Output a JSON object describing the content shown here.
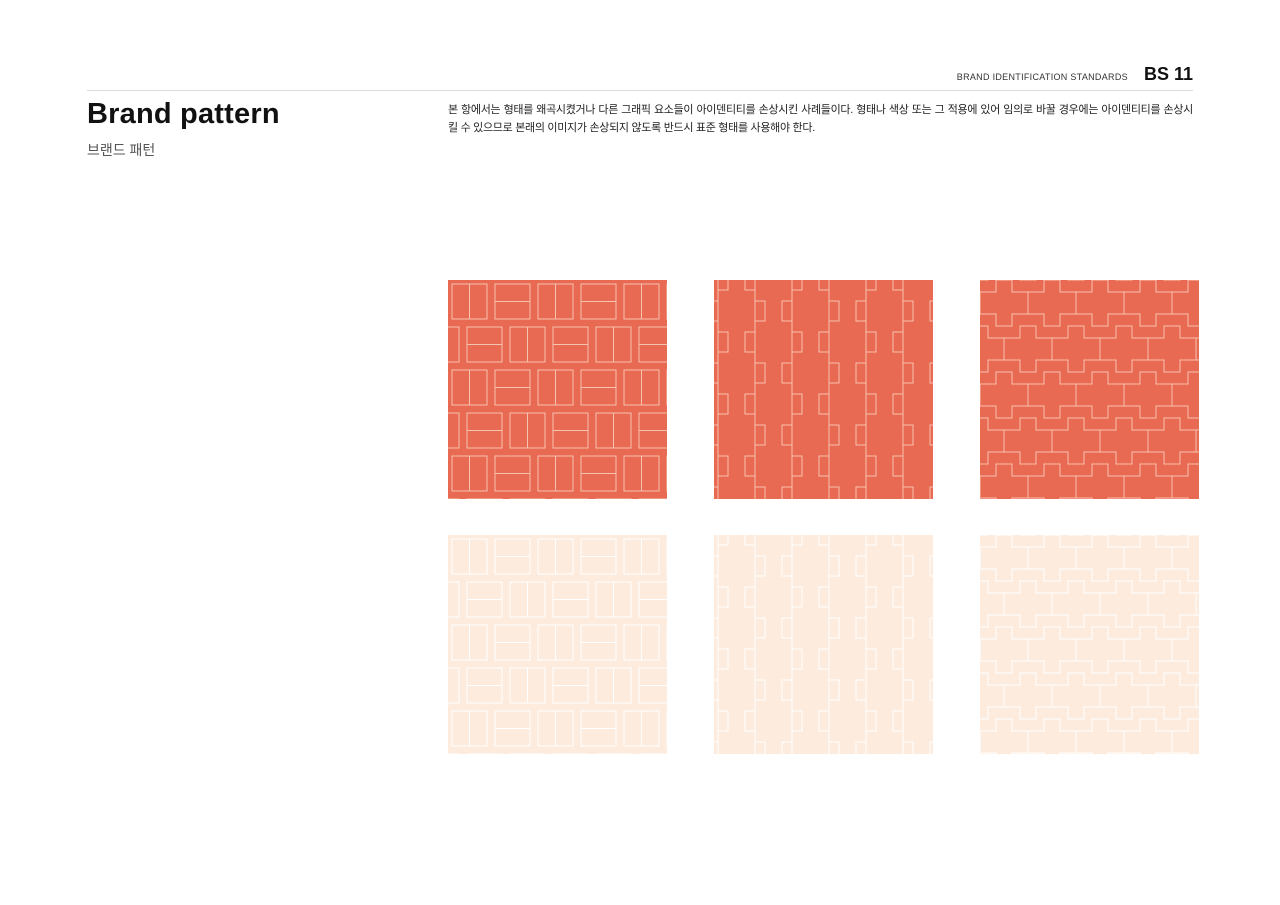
{
  "header": {
    "section_label": "BRAND IDENTIFICATION STANDARDS",
    "page_code": "BS 11"
  },
  "title": "Brand pattern",
  "subtitle": "브랜드 패턴",
  "description": "본 항에서는 형태를 왜곡시켰거나 다른 그래픽 요소들이 아이덴티티를 손상시킨 사례들이다. 형태나 색상 또는 그 적용에 있어 임의로 바꿀 경우에는 아이덴티티를 손상시킬 수 있으므로 본래의 이미지가 손상되지 않도록 반드시 표준 형태를 사용해야 한다.",
  "colors": {
    "coral": "#E96A53",
    "coral_line": "#F6C3AE",
    "cream": "#FDEBDD",
    "cream_line": "#FFFFFF"
  },
  "patterns": [
    {
      "style": "weave",
      "variant": "coral"
    },
    {
      "style": "column",
      "variant": "coral"
    },
    {
      "style": "cross",
      "variant": "coral"
    },
    {
      "style": "weave",
      "variant": "cream"
    },
    {
      "style": "column",
      "variant": "cream"
    },
    {
      "style": "cross",
      "variant": "cream"
    }
  ]
}
